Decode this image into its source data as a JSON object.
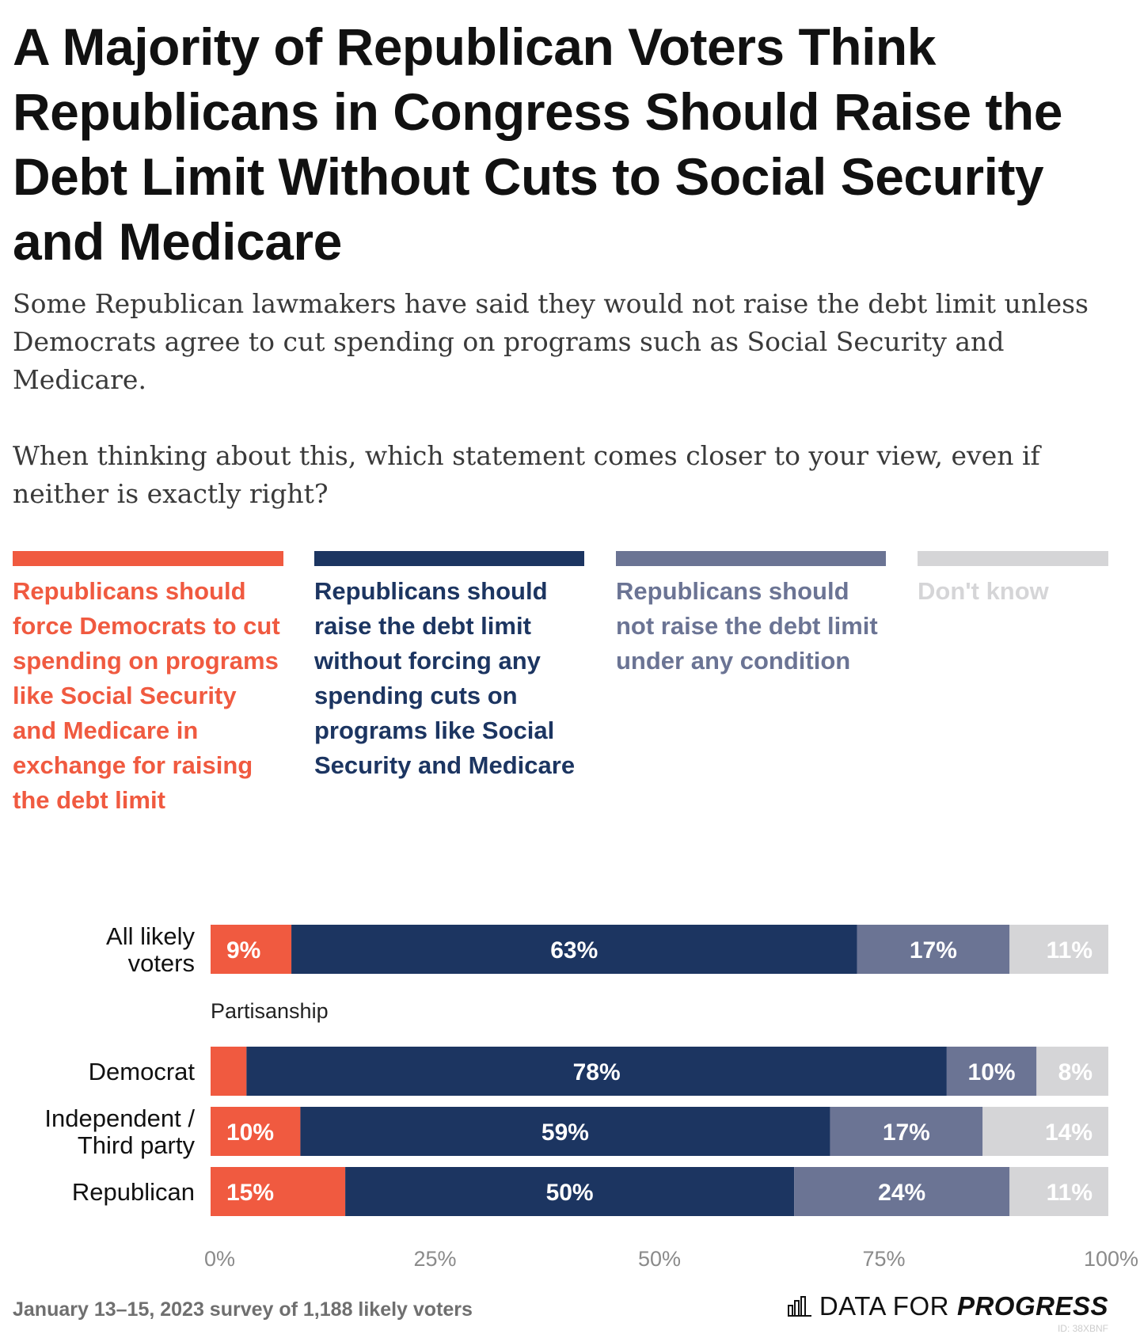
{
  "title": "A Majority of Republican Voters Think Republicans in Congress Should Raise the Debt Limit Without Cuts to Social Security and Medicare",
  "subtitle_p1": "Some Republican lawmakers have said they would not raise the debt limit unless Democrats agree to cut spending on programs such as Social Security and Medicare.",
  "subtitle_p2": "When thinking about this, which statement comes closer to your view, even if neither is exactly right?",
  "colors": {
    "force_cuts": "#f05a40",
    "raise_no_cuts": "#1c3561",
    "not_raise": "#6b7494",
    "dont_know": "#d5d5d7"
  },
  "legend": [
    {
      "label": "Republicans should force Democrats to cut spending on programs like Social Security and Medicare in exchange for raising the debt limit",
      "color_key": "force_cuts"
    },
    {
      "label": "Republicans should raise the debt limit without forcing any spending cuts on programs like Social Security and Medicare",
      "color_key": "raise_no_cuts"
    },
    {
      "label": "Republicans should not raise the debt limit under any condition",
      "color_key": "not_raise"
    },
    {
      "label": "Don't know",
      "color_key": "dont_know"
    }
  ],
  "chart_data": {
    "type": "bar",
    "orientation": "horizontal",
    "stacked": true,
    "x_range": [
      0,
      100
    ],
    "x_ticks": [
      "0%",
      "25%",
      "50%",
      "75%",
      "100%"
    ],
    "group_label": "Partisanship",
    "categories": [
      "All likely voters",
      "Democrat",
      "Independent / Third party",
      "Republican"
    ],
    "series": [
      {
        "name": "Republicans should force Democrats to cut spending on programs like Social Security and Medicare in exchange for raising the debt limit",
        "color_key": "force_cuts",
        "values": [
          9,
          4,
          10,
          15
        ],
        "labels": [
          "9%",
          "",
          "10%",
          "15%"
        ]
      },
      {
        "name": "Republicans should raise the debt limit without forcing any spending cuts on programs like Social Security and Medicare",
        "color_key": "raise_no_cuts",
        "values": [
          63,
          78,
          59,
          50
        ],
        "labels": [
          "63%",
          "78%",
          "59%",
          "50%"
        ]
      },
      {
        "name": "Republicans should not raise the debt limit under any condition",
        "color_key": "not_raise",
        "values": [
          17,
          10,
          17,
          24
        ],
        "labels": [
          "17%",
          "10%",
          "17%",
          "24%"
        ]
      },
      {
        "name": "Don't know",
        "color_key": "dont_know",
        "values": [
          11,
          8,
          14,
          11
        ],
        "labels": [
          "11%",
          "8%",
          "14%",
          "11%"
        ]
      }
    ]
  },
  "footer": {
    "note": "January 13–15, 2023 survey of 1,188 likely voters",
    "logo_a": "DATA FOR",
    "logo_b": "PROGRESS",
    "chart_id": "ID: 38XBNF"
  }
}
